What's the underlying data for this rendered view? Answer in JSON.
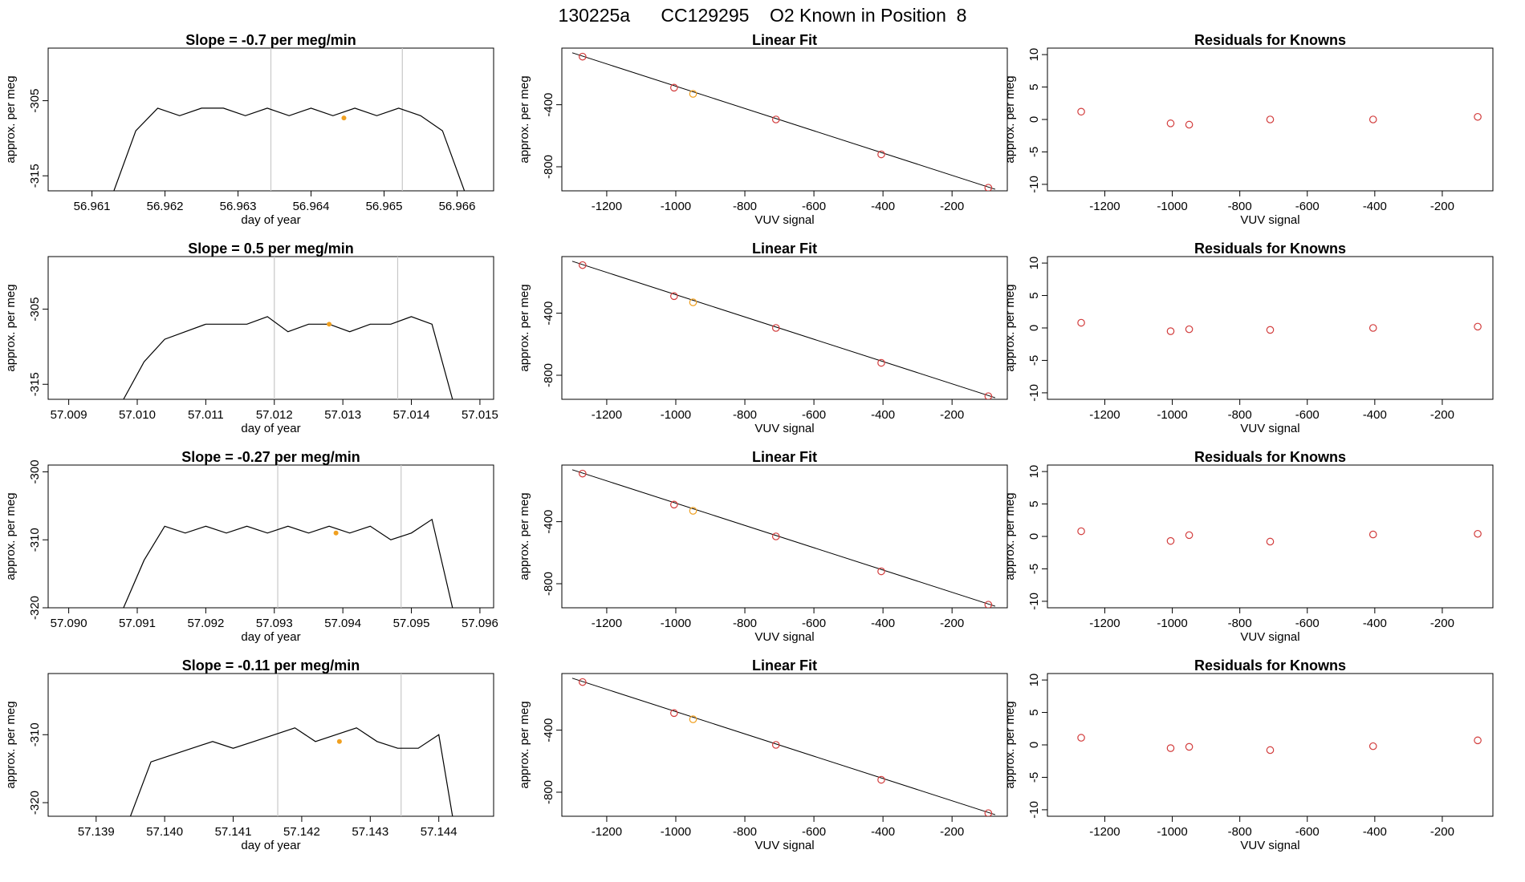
{
  "figure": {
    "title": "130225a      CC129295    O2 Known in Position  8",
    "colors": {
      "line": "#000000",
      "point": "#d23c3c",
      "highlight": "#f0a020",
      "vline": "#c8c8c8"
    }
  },
  "chart_data": [
    {
      "type": "line",
      "title": "Slope =  -0.7  per meg/min",
      "xlabel": "day of year",
      "ylabel": "approx. per meg",
      "xlim": [
        56.9604,
        56.9665
      ],
      "ylim": [
        -317,
        -298
      ],
      "xticks": [
        "56.961",
        "56.962",
        "56.963",
        "56.964",
        "56.965",
        "56.966"
      ],
      "yticks": [
        "-315",
        "-305"
      ],
      "x": [
        56.9613,
        56.9616,
        56.9619,
        56.9622,
        56.9625,
        56.9628,
        56.9631,
        56.9634,
        56.9637,
        56.964,
        56.9643,
        56.9646,
        56.9649,
        56.9652,
        56.9655,
        56.9658,
        56.9661
      ],
      "y": [
        -317,
        -309,
        -306,
        -307,
        -306,
        -306,
        -307,
        -306,
        -307,
        -306,
        -307,
        -306,
        -307,
        -306,
        -307,
        -309,
        -317
      ],
      "vlines": [
        56.96345,
        56.96525
      ],
      "highlight": [
        56.96445,
        -307.3
      ]
    },
    {
      "type": "scatter",
      "title": "Linear Fit",
      "xlabel": "VUV signal",
      "ylabel": "approx. per meg",
      "xlim": [
        -1330,
        -40
      ],
      "ylim": [
        -955,
        -35
      ],
      "xticks": [
        "-1200",
        "-1000",
        "-800",
        "-600",
        "-400",
        "-200"
      ],
      "yticks": [
        "-400",
        "-800"
      ],
      "points": [
        [
          -1270,
          -90
        ],
        [
          -1005,
          -290
        ],
        [
          -950,
          -330
        ],
        [
          -710,
          -495
        ],
        [
          -405,
          -720
        ],
        [
          -95,
          -935
        ]
      ],
      "highlight": [
        -950,
        -330
      ],
      "fit": [
        [
          -1300,
          -65
        ],
        [
          -75,
          -945
        ]
      ]
    },
    {
      "type": "scatter",
      "title": "Residuals for Knowns",
      "xlabel": "VUV signal",
      "ylabel": "approx. per meg",
      "xlim": [
        -1370,
        -50
      ],
      "ylim": [
        -11,
        11
      ],
      "xticks": [
        "-1200",
        "-1000",
        "-800",
        "-600",
        "-400",
        "-200"
      ],
      "yticks": [
        "-10",
        "-5",
        "0",
        "5",
        "10"
      ],
      "points": [
        [
          -1270,
          1.2
        ],
        [
          -1005,
          -0.6
        ],
        [
          -950,
          -0.8
        ],
        [
          -710,
          0
        ],
        [
          -405,
          0
        ],
        [
          -95,
          0.4
        ]
      ]
    },
    {
      "type": "line",
      "title": "Slope =  0.5  per meg/min",
      "xlabel": "day of year",
      "ylabel": "approx. per meg",
      "xlim": [
        57.0087,
        57.0152
      ],
      "ylim": [
        -317,
        -298
      ],
      "xticks": [
        "57.009",
        "57.010",
        "57.011",
        "57.012",
        "57.013",
        "57.014",
        "57.015"
      ],
      "yticks": [
        "-315",
        "-305"
      ],
      "x": [
        57.0098,
        57.0101,
        57.0104,
        57.0107,
        57.011,
        57.0113,
        57.0116,
        57.0119,
        57.0122,
        57.0125,
        57.0128,
        57.0131,
        57.0134,
        57.0137,
        57.014,
        57.0143,
        57.0146
      ],
      "y": [
        -317,
        -312,
        -309,
        -308,
        -307,
        -307,
        -307,
        -306,
        -308,
        -307,
        -307,
        -308,
        -307,
        -307,
        -306,
        -307,
        -317
      ],
      "vlines": [
        57.012,
        57.0138
      ],
      "highlight": [
        57.0128,
        -307
      ]
    },
    {
      "type": "scatter",
      "title": "Linear Fit",
      "xlabel": "VUV signal",
      "ylabel": "approx. per meg",
      "xlim": [
        -1330,
        -40
      ],
      "ylim": [
        -955,
        -35
      ],
      "xticks": [
        "-1200",
        "-1000",
        "-800",
        "-600",
        "-400",
        "-200"
      ],
      "yticks": [
        "-400",
        "-800"
      ],
      "points": [
        [
          -1270,
          -90
        ],
        [
          -1005,
          -290
        ],
        [
          -950,
          -330
        ],
        [
          -710,
          -495
        ],
        [
          -405,
          -720
        ],
        [
          -95,
          -935
        ]
      ],
      "highlight": [
        -950,
        -330
      ],
      "fit": [
        [
          -1300,
          -65
        ],
        [
          -75,
          -945
        ]
      ]
    },
    {
      "type": "scatter",
      "title": "Residuals for Knowns",
      "xlabel": "VUV signal",
      "ylabel": "approx. per meg",
      "xlim": [
        -1370,
        -50
      ],
      "ylim": [
        -11,
        11
      ],
      "xticks": [
        "-1200",
        "-1000",
        "-800",
        "-600",
        "-400",
        "-200"
      ],
      "yticks": [
        "-10",
        "-5",
        "0",
        "5",
        "10"
      ],
      "points": [
        [
          -1270,
          0.8
        ],
        [
          -1005,
          -0.5
        ],
        [
          -950,
          -0.2
        ],
        [
          -710,
          -0.3
        ],
        [
          -405,
          0
        ],
        [
          -95,
          0.2
        ]
      ]
    },
    {
      "type": "line",
      "title": "Slope =  -0.27  per meg/min",
      "xlabel": "day of year",
      "ylabel": "approx. per meg",
      "xlim": [
        57.0897,
        57.0962
      ],
      "ylim": [
        -320,
        -299
      ],
      "xticks": [
        "57.090",
        "57.091",
        "57.092",
        "57.093",
        "57.094",
        "57.095",
        "57.096"
      ],
      "yticks": [
        "-320",
        "-310",
        "-300"
      ],
      "x": [
        57.0908,
        57.0911,
        57.0914,
        57.0917,
        57.092,
        57.0923,
        57.0926,
        57.0929,
        57.0932,
        57.0935,
        57.0938,
        57.0941,
        57.0944,
        57.0947,
        57.095,
        57.0953,
        57.0956
      ],
      "y": [
        -320,
        -313,
        -308,
        -309,
        -308,
        -309,
        -308,
        -309,
        -308,
        -309,
        -308,
        -309,
        -308,
        -310,
        -309,
        -307,
        -320
      ],
      "vlines": [
        57.09305,
        57.09485
      ],
      "highlight": [
        57.0939,
        -309
      ]
    },
    {
      "type": "scatter",
      "title": "Linear Fit",
      "xlabel": "VUV signal",
      "ylabel": "approx. per meg",
      "xlim": [
        -1330,
        -40
      ],
      "ylim": [
        -955,
        -35
      ],
      "xticks": [
        "-1200",
        "-1000",
        "-800",
        "-600",
        "-400",
        "-200"
      ],
      "yticks": [
        "-400",
        "-800"
      ],
      "points": [
        [
          -1270,
          -90
        ],
        [
          -1005,
          -290
        ],
        [
          -950,
          -330
        ],
        [
          -710,
          -495
        ],
        [
          -405,
          -720
        ],
        [
          -95,
          -935
        ]
      ],
      "highlight": [
        -950,
        -330
      ],
      "fit": [
        [
          -1300,
          -65
        ],
        [
          -75,
          -945
        ]
      ]
    },
    {
      "type": "scatter",
      "title": "Residuals for Knowns",
      "xlabel": "VUV signal",
      "ylabel": "approx. per meg",
      "xlim": [
        -1370,
        -50
      ],
      "ylim": [
        -11,
        11
      ],
      "xticks": [
        "-1200",
        "-1000",
        "-800",
        "-600",
        "-400",
        "-200"
      ],
      "yticks": [
        "-10",
        "-5",
        "0",
        "5",
        "10"
      ],
      "points": [
        [
          -1270,
          0.8
        ],
        [
          -1005,
          -0.7
        ],
        [
          -950,
          0.2
        ],
        [
          -710,
          -0.8
        ],
        [
          -405,
          0.3
        ],
        [
          -95,
          0.4
        ]
      ]
    },
    {
      "type": "line",
      "title": "Slope =  -0.11  per meg/min",
      "xlabel": "day of year",
      "ylabel": "approx. per meg",
      "xlim": [
        57.1383,
        57.1448
      ],
      "ylim": [
        -322,
        -301
      ],
      "xticks": [
        "57.139",
        "57.140",
        "57.141",
        "57.142",
        "57.143",
        "57.144"
      ],
      "yticks": [
        "-320",
        "-310"
      ],
      "x": [
        57.1395,
        57.1398,
        57.1401,
        57.1404,
        57.1407,
        57.141,
        57.1413,
        57.1416,
        57.1419,
        57.1422,
        57.1425,
        57.1428,
        57.1431,
        57.1434,
        57.1437,
        57.144,
        57.1442
      ],
      "y": [
        -322,
        -314,
        -313,
        -312,
        -311,
        -312,
        -311,
        -310,
        -309,
        -311,
        -310,
        -309,
        -311,
        -312,
        -312,
        -310,
        -322
      ],
      "vlines": [
        57.14165,
        57.14345
      ],
      "highlight": [
        57.14255,
        -311
      ]
    },
    {
      "type": "scatter",
      "title": "Linear Fit",
      "xlabel": "VUV signal",
      "ylabel": "approx. per meg",
      "xlim": [
        -1330,
        -40
      ],
      "ylim": [
        -955,
        -35
      ],
      "xticks": [
        "-1200",
        "-1000",
        "-800",
        "-600",
        "-400",
        "-200"
      ],
      "yticks": [
        "-400",
        "-800"
      ],
      "points": [
        [
          -1270,
          -90
        ],
        [
          -1005,
          -290
        ],
        [
          -950,
          -330
        ],
        [
          -710,
          -495
        ],
        [
          -405,
          -720
        ],
        [
          -95,
          -935
        ]
      ],
      "highlight": [
        -950,
        -330
      ],
      "fit": [
        [
          -1300,
          -65
        ],
        [
          -75,
          -945
        ]
      ]
    },
    {
      "type": "scatter",
      "title": "Residuals for Knowns",
      "xlabel": "VUV signal",
      "ylabel": "approx. per meg",
      "xlim": [
        -1370,
        -50
      ],
      "ylim": [
        -11,
        11
      ],
      "xticks": [
        "-1200",
        "-1000",
        "-800",
        "-600",
        "-400",
        "-200"
      ],
      "yticks": [
        "-10",
        "-5",
        "0",
        "5",
        "10"
      ],
      "points": [
        [
          -1270,
          1.1
        ],
        [
          -1005,
          -0.5
        ],
        [
          -950,
          -0.3
        ],
        [
          -710,
          -0.8
        ],
        [
          -405,
          -0.2
        ],
        [
          -95,
          0.7
        ]
      ]
    }
  ]
}
